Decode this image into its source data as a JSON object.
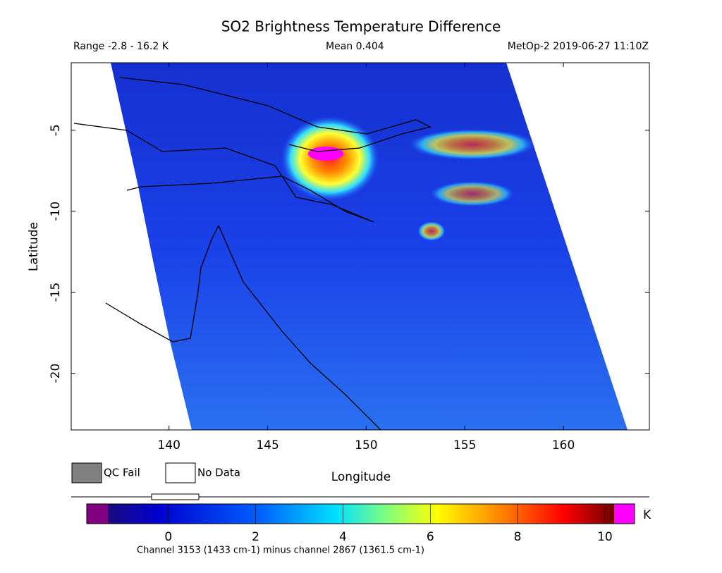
{
  "title": "SO2 Brightness Temperature Difference",
  "range": "Range -2.8 - 16.2 K",
  "mean": "Mean 0.404",
  "satellite": "MetOp-2 2019-06-27 11:10Z",
  "map": {
    "xlabel": "Longitude",
    "ylabel": "Latitude",
    "xlim": [
      135.04,
      164.36
    ],
    "ylim": [
      -23.5,
      -0.83
    ],
    "xticks": [
      140,
      145,
      150,
      155,
      160
    ],
    "yticks": [
      -5,
      -10,
      -15,
      -20
    ]
  },
  "legend": {
    "qc_fail": "QC Fail",
    "no_data": "No Data"
  },
  "colorbar": {
    "unit": "K",
    "lim": [
      -1.87,
      10.68
    ],
    "ticks": [
      0,
      2,
      4,
      6,
      8,
      10
    ]
  },
  "footnote": "Channel 3153 (1433 cm-1) minus channel 2867 (1361.5 cm-1)"
}
